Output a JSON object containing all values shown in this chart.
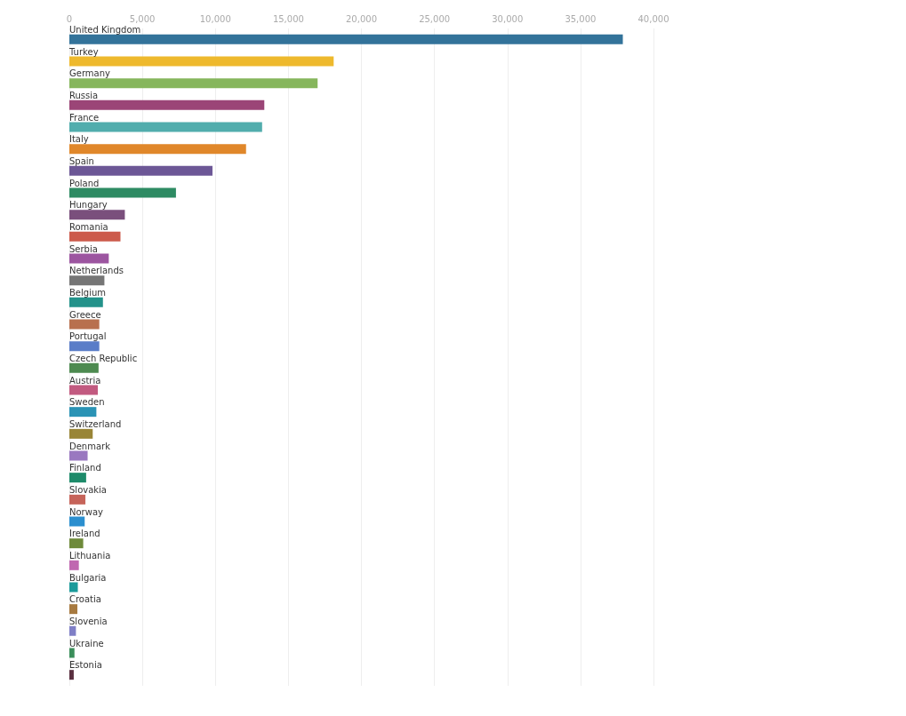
{
  "chart_data": {
    "type": "bar",
    "orientation": "horizontal",
    "categories": [
      "United Kingdom",
      "Turkey",
      "Germany",
      "Russia",
      "France",
      "Italy",
      "Spain",
      "Poland",
      "Hungary",
      "Romania",
      "Serbia",
      "Netherlands",
      "Belgium",
      "Greece",
      "Portugal",
      "Czech Republic",
      "Austria",
      "Sweden",
      "Switzerland",
      "Denmark",
      "Finland",
      "Slovakia",
      "Norway",
      "Ireland",
      "Lithuania",
      "Bulgaria",
      "Croatia",
      "Slovenia",
      "Ukraine",
      "Estonia"
    ],
    "values": [
      37900,
      18100,
      17000,
      13350,
      13200,
      12100,
      9800,
      7300,
      3800,
      3500,
      2700,
      2400,
      2300,
      2050,
      2050,
      2000,
      1950,
      1850,
      1600,
      1250,
      1150,
      1100,
      1050,
      950,
      650,
      580,
      550,
      450,
      350,
      300
    ],
    "colors": [
      "#33739a",
      "#eeb92d",
      "#86b65c",
      "#9b4577",
      "#51adad",
      "#e0872a",
      "#6c5796",
      "#2e8b63",
      "#7a4f7c",
      "#cc5a4b",
      "#9c55a0",
      "#767676",
      "#23928a",
      "#b8704e",
      "#5a7dc8",
      "#4d8a50",
      "#c25a80",
      "#2a93b5",
      "#998536",
      "#9a78c0",
      "#1e8b6a",
      "#c6645a",
      "#2b8fcf",
      "#6e8a3a",
      "#c068b0",
      "#1a9a9a",
      "#a77a40",
      "#7f7fc6",
      "#3a8e5a",
      "#5a2f40"
    ],
    "xlim": [
      0,
      40000
    ],
    "xticks": [
      0,
      {
        "value": 5000,
        "label": "5,000"
      },
      {
        "value": 10000,
        "label": "10,000"
      },
      {
        "value": 15000,
        "label": "15,000"
      },
      {
        "value": 20000,
        "label": "20,000"
      },
      {
        "value": 25000,
        "label": "25,000"
      },
      {
        "value": 30000,
        "label": "30,000"
      },
      {
        "value": 35000,
        "label": "35,000"
      },
      {
        "value": 40000,
        "label": "40,000"
      }
    ],
    "grid": "x"
  }
}
